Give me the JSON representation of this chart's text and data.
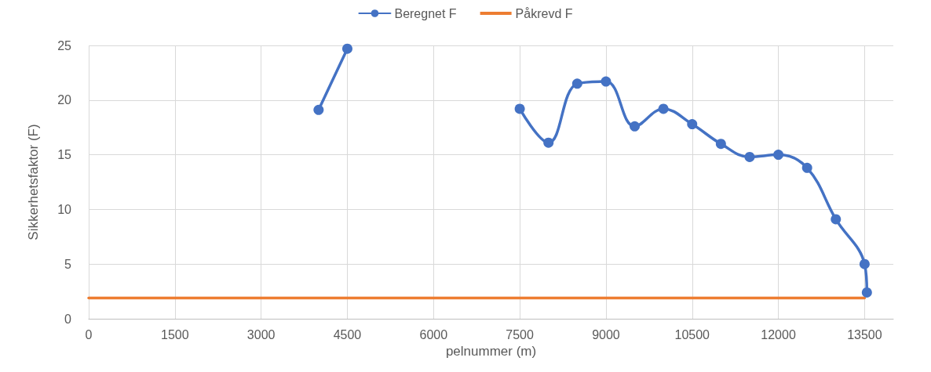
{
  "chart_data": {
    "type": "line",
    "xlabel": "pelnummer (m)",
    "ylabel": "Sikkerhetsfaktor (F)",
    "xlim": [
      0,
      14000
    ],
    "xticks": [
      0,
      1500,
      3000,
      4500,
      6000,
      7500,
      9000,
      10500,
      12000,
      13500
    ],
    "ylim": [
      0,
      25
    ],
    "yticks": [
      0,
      5,
      10,
      15,
      20,
      25
    ],
    "grid": true,
    "legend": "top",
    "series": [
      {
        "name": "Beregnet F",
        "color": "#4472c4",
        "marker": "circle",
        "x": [
          4000,
          4500,
          5000,
          7000,
          7500,
          8000,
          8500,
          9000,
          9500,
          10000,
          10500,
          11000,
          11500,
          12000,
          12500,
          13000,
          13500,
          13540
        ],
        "values": [
          19.1,
          24.7,
          null,
          null,
          19.2,
          16.1,
          21.5,
          21.7,
          17.6,
          19.2,
          17.8,
          16.0,
          14.8,
          15.0,
          13.8,
          9.1,
          5.0,
          2.4
        ]
      },
      {
        "name": "Påkrevd F",
        "color": "#ed7d31",
        "marker": "none",
        "x": [
          0,
          13500
        ],
        "values": [
          1.9,
          1.9
        ]
      }
    ]
  }
}
